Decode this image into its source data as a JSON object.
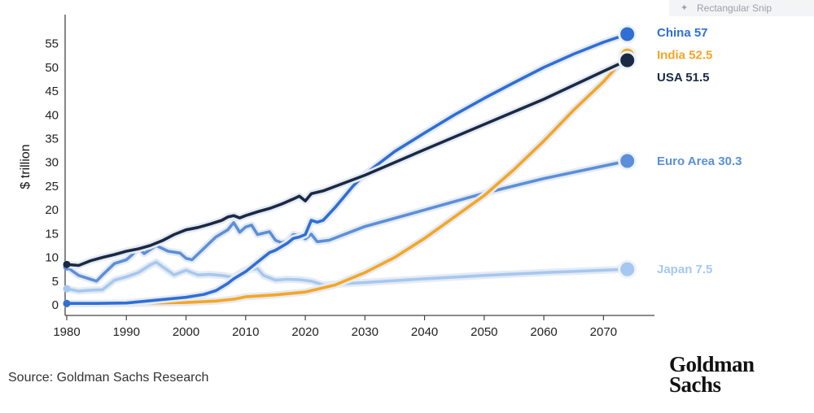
{
  "overlay": {
    "snip_label": "Rectangular Snip",
    "snip_icon": "star-icon"
  },
  "source_text": "Source: Goldman Sachs Research",
  "logo": {
    "line1": "Goldman",
    "line2": "Sachs"
  },
  "chart_data": {
    "type": "line",
    "title": "",
    "xlabel": "",
    "ylabel": "$ trillion",
    "xlim": [
      1980,
      2075
    ],
    "ylim": [
      0,
      57
    ],
    "x_ticks": [
      1980,
      1990,
      2000,
      2010,
      2020,
      2030,
      2040,
      2050,
      2060,
      2070
    ],
    "y_ticks": [
      0,
      5,
      10,
      15,
      20,
      25,
      30,
      35,
      40,
      45,
      50,
      55
    ],
    "grid": false,
    "legend": "end-of-line labels, right",
    "series": [
      {
        "name": "Japan",
        "end_label": "Japan 7.5",
        "color": "#a5c8f0",
        "points": [
          [
            1980,
            3.4
          ],
          [
            1982,
            2.9
          ],
          [
            1984,
            3.1
          ],
          [
            1986,
            3.2
          ],
          [
            1988,
            5.2
          ],
          [
            1990,
            5.9
          ],
          [
            1992,
            6.8
          ],
          [
            1994,
            8.4
          ],
          [
            1995,
            9.0
          ],
          [
            1996,
            8.1
          ],
          [
            1997,
            7.2
          ],
          [
            1998,
            6.3
          ],
          [
            2000,
            7.3
          ],
          [
            2002,
            6.3
          ],
          [
            2004,
            6.4
          ],
          [
            2006,
            6.2
          ],
          [
            2008,
            5.8
          ],
          [
            2010,
            7.4
          ],
          [
            2012,
            7.6
          ],
          [
            2013,
            6.2
          ],
          [
            2015,
            5.2
          ],
          [
            2017,
            5.4
          ],
          [
            2019,
            5.3
          ],
          [
            2021,
            5.0
          ],
          [
            2023,
            4.2
          ],
          [
            2030,
            4.7
          ],
          [
            2040,
            5.5
          ],
          [
            2050,
            6.2
          ],
          [
            2060,
            6.8
          ],
          [
            2074,
            7.5
          ]
        ]
      },
      {
        "name": "Euro Area",
        "end_label": "Euro Area 30.3",
        "color": "#5b8fd9",
        "points": [
          [
            1980,
            8.0
          ],
          [
            1982,
            6.2
          ],
          [
            1984,
            5.4
          ],
          [
            1985,
            5.0
          ],
          [
            1986,
            6.3
          ],
          [
            1988,
            8.7
          ],
          [
            1990,
            9.5
          ],
          [
            1991,
            10.6
          ],
          [
            1992,
            12.0
          ],
          [
            1993,
            10.8
          ],
          [
            1995,
            12.5
          ],
          [
            1997,
            11.3
          ],
          [
            1999,
            10.9
          ],
          [
            2000,
            9.8
          ],
          [
            2001,
            9.5
          ],
          [
            2003,
            11.9
          ],
          [
            2005,
            14.3
          ],
          [
            2007,
            15.8
          ],
          [
            2008,
            17.3
          ],
          [
            2009,
            15.3
          ],
          [
            2010,
            16.4
          ],
          [
            2011,
            16.8
          ],
          [
            2012,
            14.8
          ],
          [
            2014,
            15.4
          ],
          [
            2015,
            13.6
          ],
          [
            2016,
            13.1
          ],
          [
            2017,
            13.4
          ],
          [
            2018,
            14.8
          ],
          [
            2019,
            14.6
          ],
          [
            2020,
            13.9
          ],
          [
            2021,
            14.9
          ],
          [
            2022,
            13.3
          ],
          [
            2024,
            13.6
          ],
          [
            2030,
            16.5
          ],
          [
            2040,
            20.0
          ],
          [
            2050,
            23.5
          ],
          [
            2060,
            26.6
          ],
          [
            2074,
            30.3
          ]
        ]
      },
      {
        "name": "India",
        "end_label": "India 52.5",
        "color": "#f5a623",
        "points": [
          [
            1980,
            0.2
          ],
          [
            1990,
            0.3
          ],
          [
            2000,
            0.5
          ],
          [
            2005,
            0.8
          ],
          [
            2008,
            1.2
          ],
          [
            2010,
            1.7
          ],
          [
            2015,
            2.1
          ],
          [
            2020,
            2.7
          ],
          [
            2022,
            3.3
          ],
          [
            2025,
            4.2
          ],
          [
            2030,
            6.8
          ],
          [
            2035,
            10.0
          ],
          [
            2040,
            14.0
          ],
          [
            2045,
            18.5
          ],
          [
            2050,
            23.0
          ],
          [
            2055,
            28.5
          ],
          [
            2060,
            34.5
          ],
          [
            2065,
            41.0
          ],
          [
            2070,
            47.0
          ],
          [
            2074,
            52.5
          ]
        ]
      },
      {
        "name": "China",
        "end_label": "China 57",
        "color": "#2f6fd4",
        "points": [
          [
            1980,
            0.3
          ],
          [
            1985,
            0.3
          ],
          [
            1990,
            0.4
          ],
          [
            1995,
            1.0
          ],
          [
            2000,
            1.6
          ],
          [
            2003,
            2.2
          ],
          [
            2005,
            3.0
          ],
          [
            2007,
            4.5
          ],
          [
            2008,
            5.5
          ],
          [
            2010,
            7.0
          ],
          [
            2012,
            9.0
          ],
          [
            2014,
            11.0
          ],
          [
            2015,
            11.5
          ],
          [
            2017,
            13.0
          ],
          [
            2018,
            14.0
          ],
          [
            2019,
            14.3
          ],
          [
            2020,
            14.8
          ],
          [
            2021,
            17.8
          ],
          [
            2022,
            17.4
          ],
          [
            2023,
            17.8
          ],
          [
            2025,
            20.5
          ],
          [
            2028,
            25.0
          ],
          [
            2030,
            27.5
          ],
          [
            2035,
            32.3
          ],
          [
            2040,
            36.2
          ],
          [
            2045,
            40.0
          ],
          [
            2050,
            43.5
          ],
          [
            2055,
            46.8
          ],
          [
            2060,
            50.0
          ],
          [
            2065,
            52.8
          ],
          [
            2070,
            55.3
          ],
          [
            2074,
            57.0
          ]
        ]
      },
      {
        "name": "USA",
        "end_label": "USA 51.5",
        "color": "#1a2a44",
        "points": [
          [
            1980,
            8.5
          ],
          [
            1982,
            8.3
          ],
          [
            1984,
            9.3
          ],
          [
            1986,
            10.0
          ],
          [
            1988,
            10.6
          ],
          [
            1990,
            11.3
          ],
          [
            1992,
            11.8
          ],
          [
            1994,
            12.5
          ],
          [
            1996,
            13.5
          ],
          [
            1998,
            14.8
          ],
          [
            2000,
            15.8
          ],
          [
            2002,
            16.3
          ],
          [
            2004,
            17.0
          ],
          [
            2006,
            17.8
          ],
          [
            2007,
            18.5
          ],
          [
            2008,
            18.8
          ],
          [
            2009,
            18.3
          ],
          [
            2010,
            18.8
          ],
          [
            2012,
            19.6
          ],
          [
            2014,
            20.3
          ],
          [
            2016,
            21.2
          ],
          [
            2018,
            22.3
          ],
          [
            2019,
            22.9
          ],
          [
            2020,
            21.9
          ],
          [
            2021,
            23.4
          ],
          [
            2023,
            24.0
          ],
          [
            2030,
            27.3
          ],
          [
            2040,
            32.7
          ],
          [
            2050,
            38.0
          ],
          [
            2060,
            43.3
          ],
          [
            2070,
            49.2
          ],
          [
            2074,
            51.5
          ]
        ]
      }
    ]
  }
}
